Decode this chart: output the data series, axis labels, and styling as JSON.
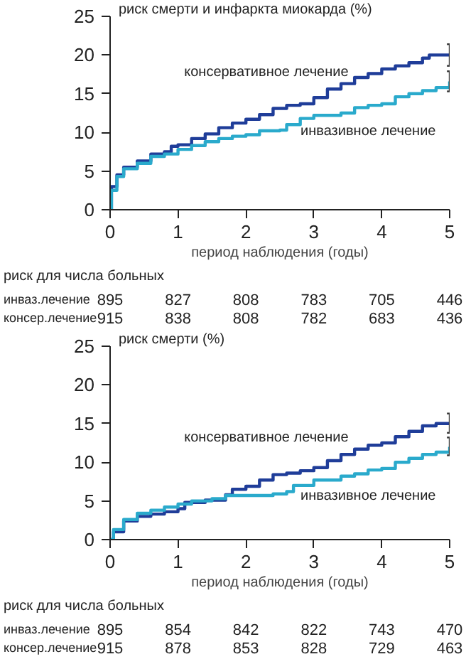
{
  "chart_data": [
    {
      "type": "step",
      "ylabel": "риск смерти и инфаркта миокарда (%)",
      "xlabel": "период наблюдения (годы)",
      "xlim": [
        0,
        5
      ],
      "xticks": [
        0,
        1,
        2,
        3,
        4,
        5
      ],
      "ylim": [
        0,
        25
      ],
      "yticks": [
        0,
        5,
        10,
        15,
        20,
        25
      ],
      "grid": false,
      "series": [
        {
          "name": "консервативное лечение",
          "color": "#1f3d99",
          "x": [
            0,
            0.02,
            0.1,
            0.2,
            0.4,
            0.6,
            0.8,
            0.9,
            1.0,
            1.2,
            1.4,
            1.6,
            1.8,
            2.0,
            2.2,
            2.4,
            2.6,
            2.8,
            3.0,
            3.2,
            3.4,
            3.6,
            3.8,
            4.0,
            4.2,
            4.4,
            4.6,
            4.7,
            5.0
          ],
          "values": [
            0,
            3,
            4.5,
            5.5,
            6.3,
            7.2,
            7.5,
            8.2,
            8.4,
            9.2,
            9.8,
            10.6,
            11.2,
            11.7,
            12.3,
            13.1,
            13.5,
            13.7,
            14.5,
            15.6,
            16.3,
            17.1,
            17.6,
            18.2,
            18.6,
            19.0,
            19.6,
            20,
            20
          ],
          "errors": [
            null,
            null,
            null,
            null,
            null,
            null,
            null,
            null,
            null,
            null,
            null,
            null,
            null,
            null,
            null,
            null,
            null,
            null,
            null,
            null,
            null,
            null,
            null,
            null,
            null,
            null,
            null,
            null,
            [
              18.6,
              21.4
            ]
          ]
        },
        {
          "name": "инвазивное лечение",
          "color": "#2aaacc",
          "x": [
            0,
            0.02,
            0.1,
            0.2,
            0.4,
            0.6,
            0.8,
            1.0,
            1.2,
            1.4,
            1.6,
            1.8,
            2.0,
            2.2,
            2.5,
            2.6,
            2.8,
            3.0,
            3.4,
            3.6,
            3.8,
            4.0,
            4.2,
            4.4,
            4.6,
            4.8,
            5.0
          ],
          "values": [
            0,
            2.5,
            4.3,
            5.3,
            6.0,
            6.9,
            7.2,
            7.8,
            8.3,
            8.8,
            9.2,
            9.5,
            9.7,
            10.2,
            10.3,
            11.0,
            11.8,
            12.2,
            12.5,
            13.2,
            13.5,
            13.7,
            14.6,
            15.0,
            15.4,
            15.8,
            16.6
          ],
          "errors": [
            null,
            null,
            null,
            null,
            null,
            null,
            null,
            null,
            null,
            null,
            null,
            null,
            null,
            null,
            null,
            null,
            null,
            null,
            null,
            null,
            null,
            null,
            null,
            null,
            null,
            null,
            [
              15.3,
              17.9
            ]
          ]
        }
      ],
      "annotations": [
        "риск для числа больных",
        "инваз.лечение",
        "895",
        "827",
        "808",
        "783",
        "705",
        "446",
        "консер.лечение",
        "915",
        "838",
        "808",
        "782",
        "683",
        "436"
      ]
    },
    {
      "type": "step",
      "ylabel": "риск смерти (%)",
      "xlabel": "период наблюдения (годы)",
      "xlim": [
        0,
        5
      ],
      "xticks": [
        0,
        1,
        2,
        3,
        4,
        5
      ],
      "ylim": [
        0,
        25
      ],
      "yticks": [
        0,
        5,
        10,
        15,
        20,
        25
      ],
      "grid": false,
      "series": [
        {
          "name": "консервативное лечение",
          "color": "#1f3d99",
          "x": [
            0,
            0.05,
            0.2,
            0.4,
            0.6,
            0.8,
            1.0,
            1.1,
            1.4,
            1.7,
            1.8,
            2.0,
            2.2,
            2.4,
            2.6,
            2.8,
            3.0,
            3.2,
            3.4,
            3.6,
            3.8,
            4.0,
            4.2,
            4.4,
            4.6,
            4.8,
            5.0
          ],
          "values": [
            0,
            1.0,
            2.4,
            3.0,
            3.3,
            3.6,
            4.0,
            4.8,
            5.1,
            5.8,
            6.5,
            6.9,
            7.7,
            8.4,
            8.6,
            8.9,
            9.3,
            10.2,
            11.0,
            11.7,
            12.2,
            12.5,
            13.3,
            14.0,
            14.7,
            15.0,
            15.1
          ],
          "errors": [
            null,
            null,
            null,
            null,
            null,
            null,
            null,
            null,
            null,
            null,
            null,
            null,
            null,
            null,
            null,
            null,
            null,
            null,
            null,
            null,
            null,
            null,
            null,
            null,
            null,
            null,
            [
              13.8,
              16.3
            ]
          ]
        },
        {
          "name": "инвазивное лечение",
          "color": "#2aaacc",
          "x": [
            0,
            0.05,
            0.2,
            0.4,
            0.6,
            0.8,
            1.0,
            1.2,
            1.5,
            1.7,
            2.0,
            2.4,
            2.6,
            2.7,
            3.0,
            3.4,
            3.6,
            3.8,
            4.0,
            4.2,
            4.4,
            4.6,
            4.8,
            5.0
          ],
          "values": [
            0,
            1.3,
            2.6,
            3.4,
            3.8,
            4.2,
            4.6,
            5.0,
            5.3,
            5.7,
            5.7,
            5.9,
            6.2,
            7.0,
            7.7,
            8.2,
            8.5,
            9.0,
            9.2,
            10.0,
            10.5,
            11.0,
            11.3,
            12.0
          ],
          "errors": [
            null,
            null,
            null,
            null,
            null,
            null,
            null,
            null,
            null,
            null,
            null,
            null,
            null,
            null,
            null,
            null,
            null,
            null,
            null,
            null,
            null,
            null,
            null,
            [
              10.9,
              13.2
            ]
          ]
        }
      ],
      "annotations": [
        "риск для числа больных",
        "инваз.лечение",
        "895",
        "854",
        "842",
        "822",
        "743",
        "470",
        "консер.лечение",
        "915",
        "878",
        "853",
        "828",
        "729",
        "463"
      ]
    }
  ]
}
